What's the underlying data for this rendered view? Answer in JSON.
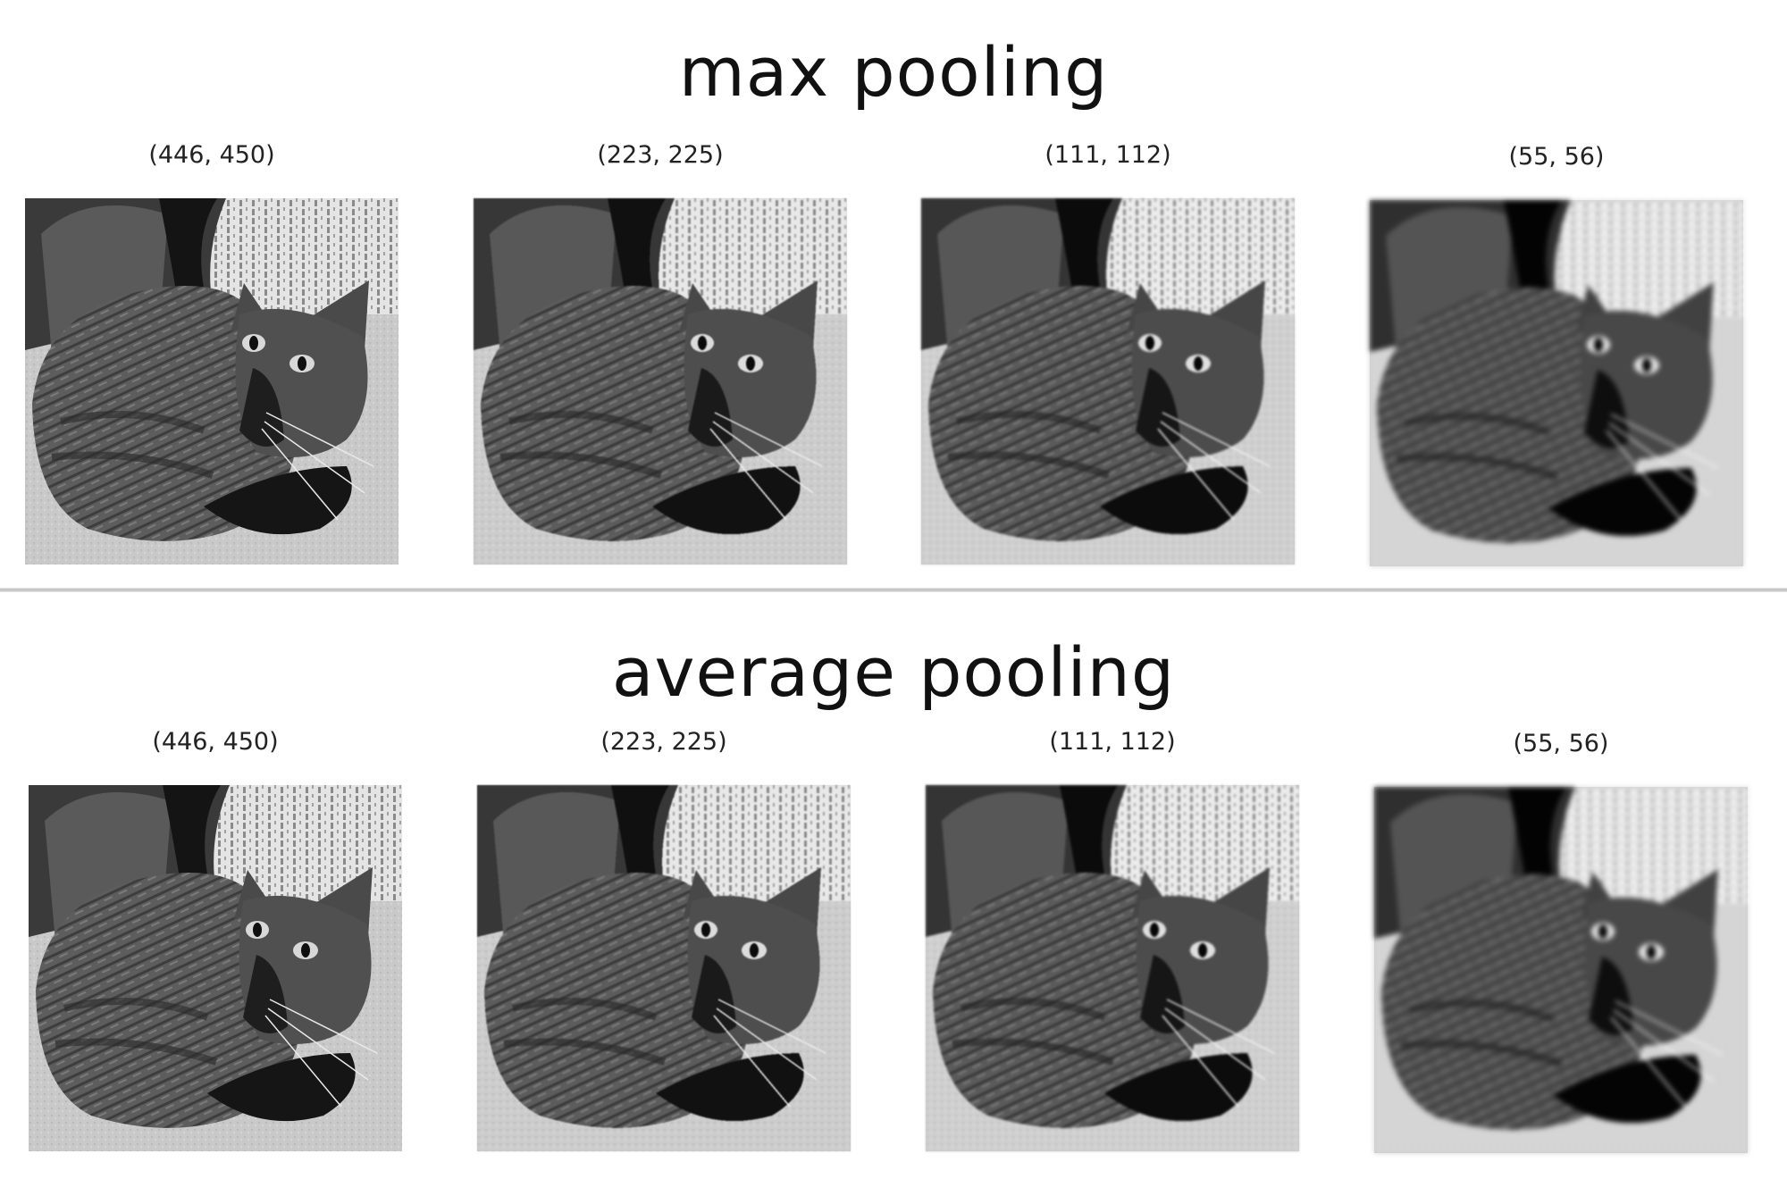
{
  "sections": [
    {
      "title": "max pooling",
      "panels": [
        {
          "caption": "(446, 450)",
          "pixel_block": 1
        },
        {
          "caption": "(223, 225)",
          "pixel_block": 2
        },
        {
          "caption": "(111, 112)",
          "pixel_block": 4
        },
        {
          "caption": "(55, 56)",
          "pixel_block": 8
        }
      ]
    },
    {
      "title": "average pooling",
      "panels": [
        {
          "caption": "(446, 450)",
          "pixel_block": 1
        },
        {
          "caption": "(223, 225)",
          "pixel_block": 2
        },
        {
          "caption": "(111, 112)",
          "pixel_block": 4
        },
        {
          "caption": "(55, 56)",
          "pixel_block": 8
        }
      ]
    }
  ],
  "image_subject": "grayscale photo of a curled-up tabby cat on a carpet in front of a wicker chair"
}
